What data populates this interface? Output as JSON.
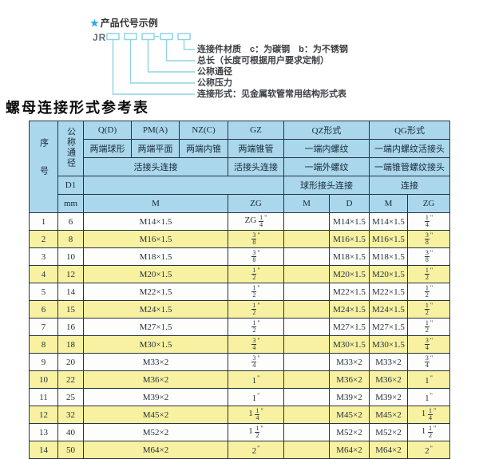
{
  "diagram": {
    "star": "★",
    "title": "产品代号示例",
    "prefix": "JR",
    "labels": [
      "连接件材质　c：为碳钢　b：为不锈钢",
      "总长（长度可根据用户要求定制）",
      "公称通径",
      "公称压力",
      "连接形式：见金属软管常用结构形式表"
    ]
  },
  "table_title": "螺母连接形式参考表",
  "table": {
    "header": {
      "col_seq": "序号",
      "col_dn": "公称通径",
      "dn_sub1": "D1",
      "dn_sub2": "mm",
      "m_unit": "M",
      "union_row": "活接头连接",
      "groups": [
        {
          "code": "Q(D)",
          "ends": "两端球形"
        },
        {
          "code": "PM(A)",
          "ends": "两端平面"
        },
        {
          "code": "NZ(C)",
          "ends": "两端内锥"
        }
      ],
      "gz": {
        "code": "GZ",
        "ends": "两端锥管",
        "conn": "活接头连接",
        "unit": "ZG"
      },
      "qz": {
        "code": "QZ形式",
        "row2": "一端内螺纹",
        "row3": "一端外螺纹",
        "row4": "球形接头连接",
        "units": [
          "M",
          "D"
        ]
      },
      "qg": {
        "code": "QG形式",
        "row2": "一端内螺纹活接头",
        "row3": "一端锥管螺纹接头",
        "row4": "连接",
        "units": [
          "M",
          "ZG"
        ]
      }
    },
    "rows": [
      {
        "seq": 1,
        "dn": 6,
        "m": "M14×1.5",
        "gz": "ZG 1/4\"",
        "qz_m": "",
        "qz_d": "M14×1.5",
        "qg_m": "M14×1.5",
        "qg_zg": "1/4\""
      },
      {
        "seq": 2,
        "dn": 8,
        "m": "M16×1.5",
        "gz": "3/8\"",
        "qz_m": "",
        "qz_d": "M16×1.5",
        "qg_m": "M16×1.5",
        "qg_zg": "3/8\""
      },
      {
        "seq": 3,
        "dn": 10,
        "m": "M18×1.5",
        "gz": "3/8\"",
        "qz_m": "",
        "qz_d": "M18×1.5",
        "qg_m": "M18×1.5",
        "qg_zg": "3/8\""
      },
      {
        "seq": 4,
        "dn": 12,
        "m": "M20×1.5",
        "gz": "1/2\"",
        "qz_m": "",
        "qz_d": "M20×1.5",
        "qg_m": "M20×1.5",
        "qg_zg": "1/2\""
      },
      {
        "seq": 5,
        "dn": 14,
        "m": "M22×1.5",
        "gz": "1/2\"",
        "qz_m": "",
        "qz_d": "M22×1.5",
        "qg_m": "M22×1.5",
        "qg_zg": "1/2\""
      },
      {
        "seq": 6,
        "dn": 15,
        "m": "M24×1.5",
        "gz": "1/2\"",
        "qz_m": "",
        "qz_d": "M24×1.5",
        "qg_m": "M24×1.5",
        "qg_zg": "1/2\""
      },
      {
        "seq": 7,
        "dn": 16,
        "m": "M27×1.5",
        "gz": "1/2\"",
        "qz_m": "",
        "qz_d": "M27×1.5",
        "qg_m": "M27×1.5",
        "qg_zg": "1/2\""
      },
      {
        "seq": 8,
        "dn": 18,
        "m": "M30×1.5",
        "gz": "3/4\"",
        "qz_m": "",
        "qz_d": "M30×1.5",
        "qg_m": "M30×1.5",
        "qg_zg": "3/4\""
      },
      {
        "seq": 9,
        "dn": 20,
        "m": "M33×2",
        "gz": "3/4\"",
        "qz_m": "",
        "qz_d": "M33×2",
        "qg_m": "M33×2",
        "qg_zg": "3/4\""
      },
      {
        "seq": 10,
        "dn": 22,
        "m": "M36×2",
        "gz": "1\"",
        "qz_m": "",
        "qz_d": "M36×2",
        "qg_m": "M36×2",
        "qg_zg": "1\""
      },
      {
        "seq": 11,
        "dn": 25,
        "m": "M39×2",
        "gz": "1\"",
        "qz_m": "",
        "qz_d": "M39×2",
        "qg_m": "M39×2",
        "qg_zg": "1\""
      },
      {
        "seq": 12,
        "dn": 32,
        "m": "M45×2",
        "gz": "1 1/4\"",
        "qz_m": "",
        "qz_d": "M45×2",
        "qg_m": "M45×2",
        "qg_zg": "1 1/4\""
      },
      {
        "seq": 13,
        "dn": 40,
        "m": "M52×2",
        "gz": "1 1/2\"",
        "qz_m": "",
        "qz_d": "M52×2",
        "qg_m": "M52×2",
        "qg_zg": "1 1/2\""
      },
      {
        "seq": 14,
        "dn": 50,
        "m": "M64×2",
        "gz": "2\"",
        "qz_m": "",
        "qz_d": "M64×2",
        "qg_m": "M64×2",
        "qg_zg": "2\""
      }
    ]
  },
  "colors": {
    "header_bg": "#abd7ec",
    "row_alt_bg": "#f7f1a1",
    "grid": "#24343f",
    "diagram_line": "#8fd4e6",
    "star_accent": "#2aa9e0"
  }
}
